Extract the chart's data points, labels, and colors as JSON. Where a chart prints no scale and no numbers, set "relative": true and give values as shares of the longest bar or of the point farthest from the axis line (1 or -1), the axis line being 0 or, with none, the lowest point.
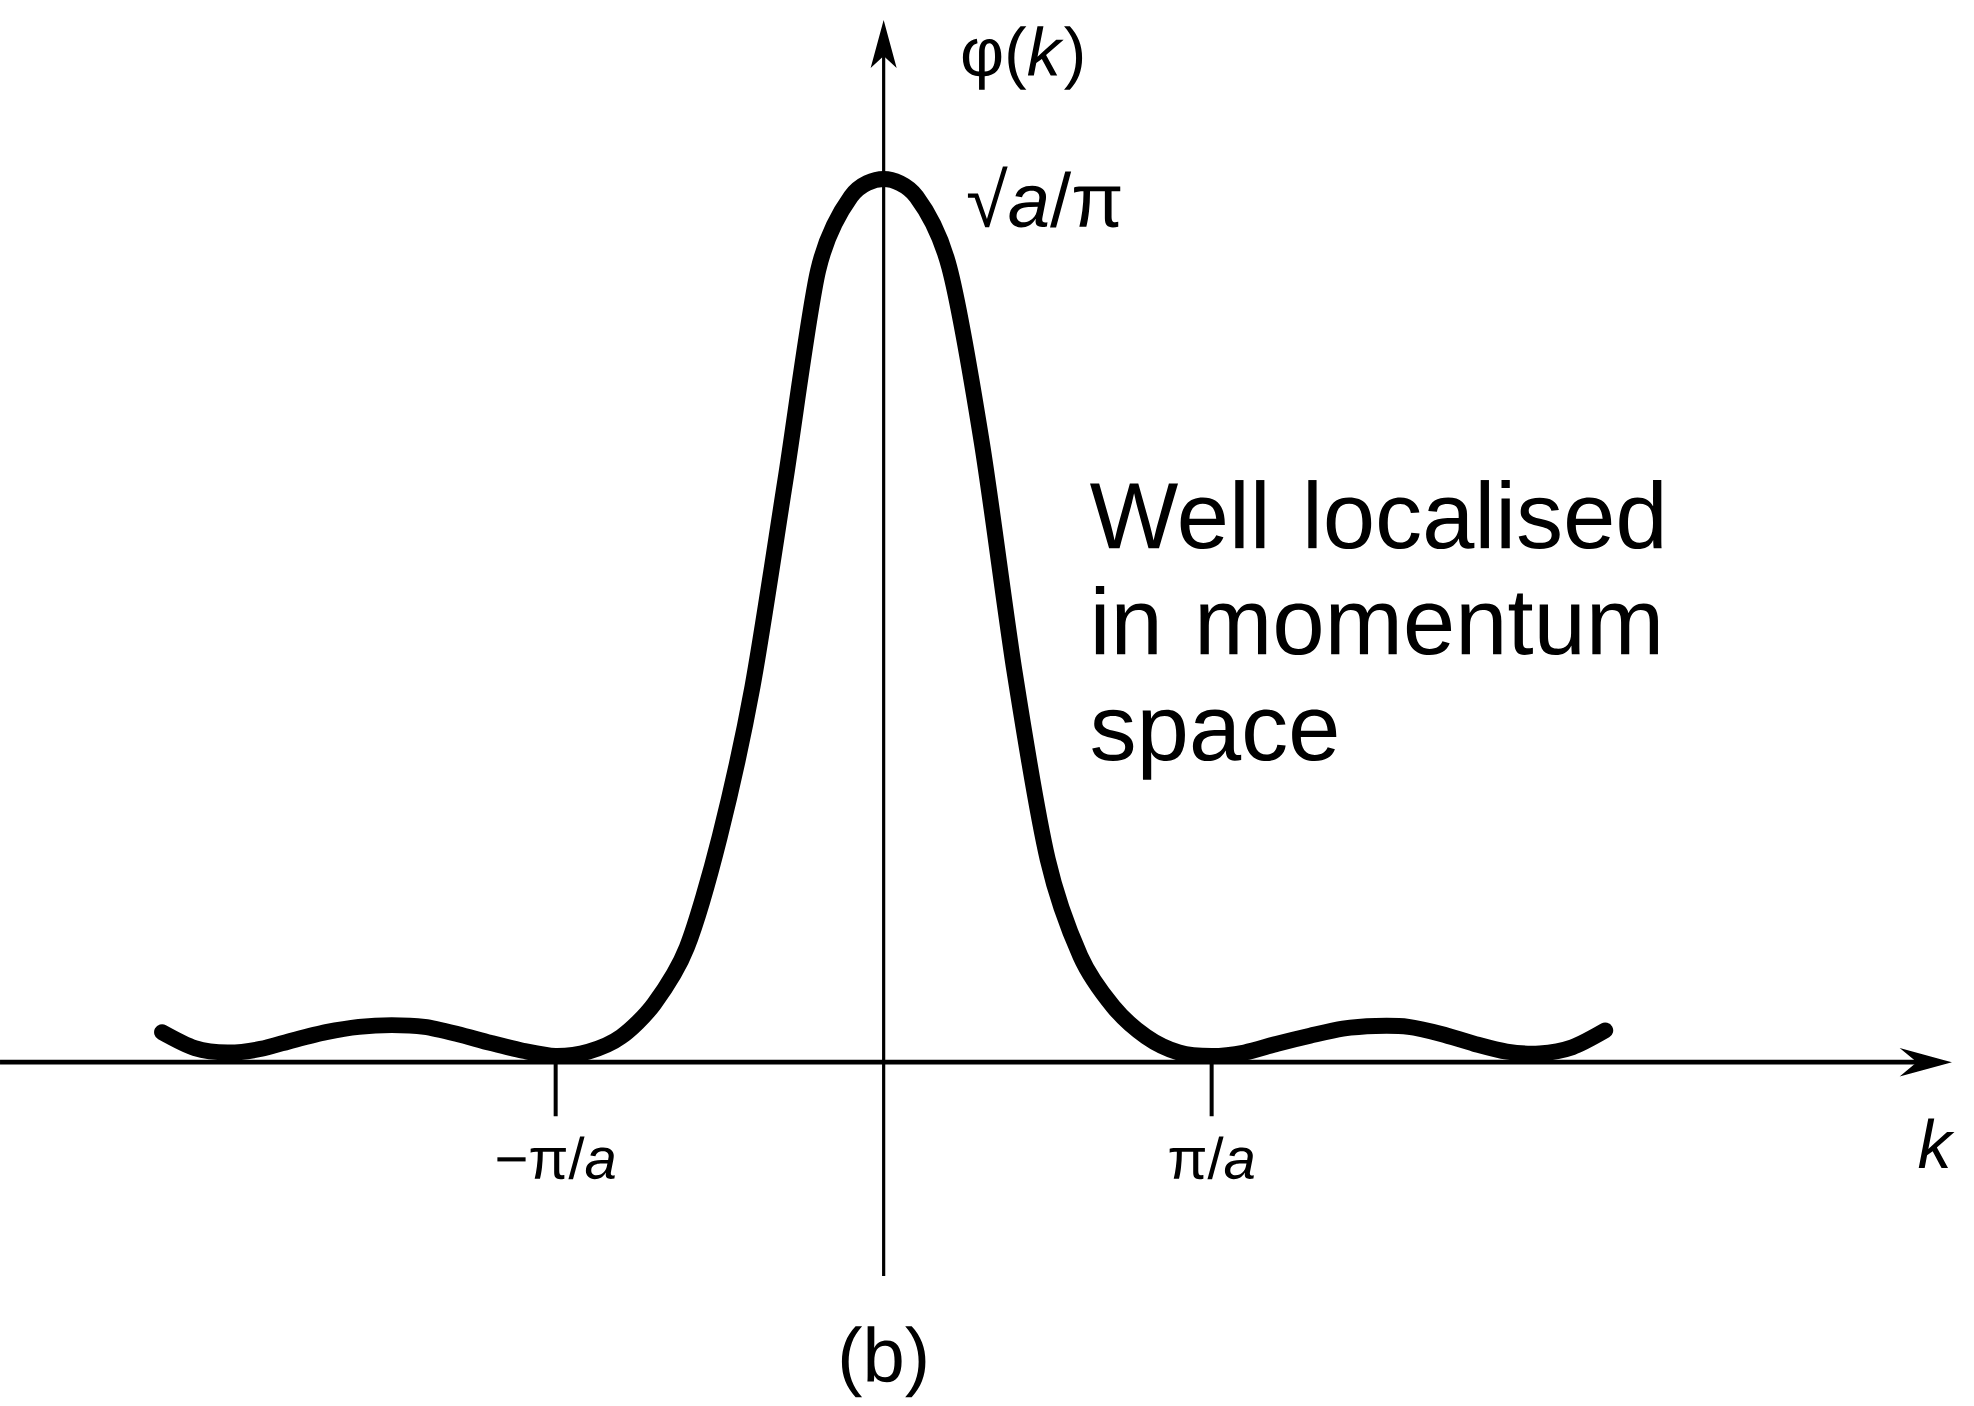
{
  "chart_data": {
    "type": "line",
    "xlabel": "k",
    "ylabel": "φ(*k*)",
    "relative": true,
    "color": "#000000",
    "categories": [
      null,
      null,
      null,
      null,
      null,
      null,
      null,
      null,
      null,
      null,
      null,
      null,
      "−π/*a*",
      null,
      null,
      null,
      null,
      null,
      null,
      null,
      null,
      null,
      null,
      null,
      null,
      null,
      null,
      null,
      null,
      null,
      null,
      null,
      "π/*a*",
      null,
      null,
      null,
      null,
      null,
      null,
      null,
      null,
      null,
      null,
      null,
      null
    ],
    "values": [
      0.034,
      0.016,
      0.011,
      0.015,
      0.025,
      0.034,
      0.04,
      0.042,
      0.04,
      0.032,
      0.022,
      0.013,
      0.007,
      0.012,
      0.029,
      0.066,
      0.13,
      0.255,
      0.425,
      0.658,
      0.896,
      0.98,
      1,
      0.98,
      0.9,
      0.7,
      0.44,
      0.23,
      0.12,
      0.063,
      0.029,
      0.011,
      0.007,
      0.011,
      0.021,
      0.03,
      0.038,
      0.041,
      0.04,
      0.032,
      0.021,
      0.012,
      0.01,
      0.017,
      0.036
    ],
    "annotations": [
      "√*a*/π",
      "Well localised in momentum space",
      "(b)"
    ]
  }
}
